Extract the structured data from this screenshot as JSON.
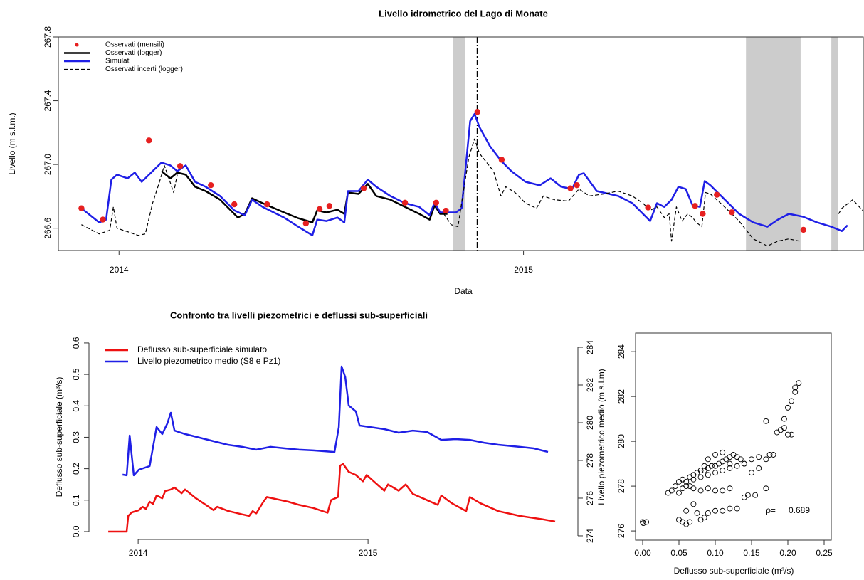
{
  "chart_data": [
    {
      "type": "line",
      "title": "Livello idrometrico del Lago di Monate",
      "xlabel": "Data",
      "ylabel": "Livello (m s.l.m.)",
      "xlim": [
        2013.85,
        2015.84
      ],
      "xticks": [
        2014,
        2015
      ],
      "ylim": [
        266.46,
        267.8
      ],
      "yticks": [
        266.6,
        {
          "value": 267,
          "label": "267.0"
        },
        267.4,
        267.8
      ],
      "legend": "topleft",
      "shaded": [
        [
          2014.826,
          2014.856
        ],
        [
          2015.55,
          2015.685
        ],
        [
          2015.761,
          2015.777
        ]
      ],
      "shade_color": "#cccccc",
      "vline": 2014.886,
      "series": [
        {
          "name": "Osservati (mensili)",
          "color": "#e62020",
          "mode": "markers",
          "x": [
            2013.907,
            2013.96,
            2014.074,
            2014.151,
            2014.227,
            2014.285,
            2014.366,
            2014.462,
            2014.496,
            2014.52,
            2014.605,
            2014.707,
            2014.784,
            2014.808,
            2014.886,
            2014.946,
            2015.116,
            2015.132,
            2015.308,
            2015.424,
            2015.443,
            2015.478,
            2015.515,
            2015.692
          ],
          "values": [
            266.725,
            266.654,
            267.151,
            266.99,
            266.87,
            266.75,
            266.75,
            266.63,
            266.72,
            266.74,
            266.85,
            266.76,
            266.76,
            266.71,
            267.33,
            267.03,
            266.85,
            266.87,
            266.73,
            266.74,
            266.69,
            266.81,
            266.7,
            266.59
          ]
        },
        {
          "name": "Osservati (logger)",
          "color": "#000000",
          "mode": "line",
          "line_width": 2.5,
          "x": [
            2014.105,
            2014.127,
            2014.144,
            2014.165,
            2014.188,
            2014.214,
            2014.25,
            2014.294,
            2014.311,
            2014.329,
            2014.355,
            2014.408,
            2014.443,
            2014.478,
            2014.49,
            2014.513,
            2014.54,
            2014.557,
            2014.566,
            2014.592,
            2014.615,
            2014.636,
            2014.671,
            2014.707,
            2014.742,
            2014.768,
            2014.78,
            2014.794,
            2014.812
          ],
          "values": [
            266.958,
            266.913,
            266.949,
            266.936,
            266.86,
            266.833,
            266.779,
            266.667,
            266.69,
            266.788,
            266.757,
            266.699,
            266.663,
            266.636,
            266.712,
            266.699,
            266.716,
            266.69,
            266.824,
            266.815,
            266.878,
            266.802,
            266.779,
            266.734,
            266.69,
            266.654,
            266.743,
            266.69,
            266.69
          ]
        },
        {
          "name": "Simulati",
          "color": "#1f1fe6",
          "mode": "line",
          "line_width": 2.5,
          "x": [
            2013.907,
            2013.951,
            2013.968,
            2013.981,
            2013.995,
            2014.021,
            2014.039,
            2014.056,
            2014.083,
            2014.105,
            2014.127,
            2014.144,
            2014.165,
            2014.188,
            2014.214,
            2014.25,
            2014.285,
            2014.311,
            2014.329,
            2014.355,
            2014.408,
            2014.443,
            2014.478,
            2014.49,
            2014.513,
            2014.54,
            2014.557,
            2014.566,
            2014.592,
            2014.615,
            2014.636,
            2014.671,
            2014.707,
            2014.742,
            2014.768,
            2014.78,
            2014.794,
            2014.833,
            2014.847,
            2014.856,
            2014.868,
            2014.879,
            2014.891,
            2014.917,
            2014.944,
            2014.97,
            2015.005,
            2015.04,
            2015.067,
            2015.093,
            2015.12,
            2015.137,
            2015.149,
            2015.181,
            2015.234,
            2015.269,
            2015.313,
            2015.33,
            2015.348,
            2015.366,
            2015.383,
            2015.401,
            2015.418,
            2015.436,
            2015.448,
            2015.462,
            2015.48,
            2015.533,
            2015.568,
            2015.603,
            2015.629,
            2015.656,
            2015.691,
            2015.726,
            2015.761,
            2015.787,
            2015.801
          ],
          "values": [
            266.725,
            266.636,
            266.654,
            266.905,
            266.936,
            266.913,
            266.949,
            266.891,
            266.958,
            267.012,
            266.994,
            266.958,
            266.994,
            266.891,
            266.86,
            266.802,
            266.712,
            266.681,
            266.779,
            266.734,
            266.667,
            266.609,
            266.555,
            266.654,
            266.645,
            266.667,
            266.636,
            266.833,
            266.833,
            266.905,
            266.86,
            266.802,
            266.757,
            266.734,
            266.681,
            266.761,
            266.699,
            266.699,
            266.725,
            266.958,
            267.272,
            267.317,
            267.236,
            267.115,
            267.025,
            266.958,
            266.891,
            266.869,
            266.913,
            266.86,
            266.846,
            266.936,
            266.945,
            266.833,
            266.802,
            266.757,
            266.645,
            266.757,
            266.734,
            266.779,
            266.86,
            266.846,
            266.743,
            266.734,
            266.896,
            266.869,
            266.824,
            266.69,
            266.636,
            266.609,
            266.654,
            266.69,
            266.672,
            266.636,
            266.609,
            266.582,
            266.618
          ]
        },
        {
          "name": "Osservati incerti (logger)",
          "color": "#000000",
          "mode": "dashed",
          "line_width": 1.2,
          "x": [
            2013.907,
            2013.951,
            2013.977,
            2013.986,
            2013.995,
            2014.021,
            2014.047,
            2014.065,
            2014.083,
            2014.1,
            2014.112,
            2014.123,
            2014.135,
            2014.144,
            null,
            2014.803,
            2014.821,
            2014.838,
            2014.851,
            2014.865,
            2014.879,
            2014.891,
            2014.909,
            2014.926,
            2014.944,
            2014.956,
            2014.979,
            2015.005,
            2015.032,
            2015.049,
            2015.076,
            2015.111,
            2015.137,
            2015.163,
            2015.199,
            2015.234,
            2015.269,
            2015.295,
            2015.313,
            2015.33,
            2015.348,
            2015.36,
            2015.366,
            2015.378,
            2015.392,
            2015.406,
            2015.418,
            2015.427,
            2015.441,
            2015.45,
            2015.462,
            2015.497,
            2015.533,
            2015.568,
            2015.603,
            2015.629,
            2015.656,
            2015.682,
            null,
            2015.779,
            2015.787,
            2015.814,
            2015.838
          ],
          "values": [
            266.622,
            266.564,
            266.587,
            266.734,
            266.6,
            266.578,
            266.555,
            266.564,
            266.757,
            266.891,
            266.994,
            266.913,
            266.824,
            266.936,
            null,
            266.69,
            266.622,
            266.609,
            266.824,
            267.048,
            267.16,
            267.07,
            267.012,
            266.958,
            266.802,
            266.86,
            266.824,
            266.757,
            266.725,
            266.802,
            266.779,
            266.77,
            266.846,
            266.802,
            266.815,
            266.833,
            266.802,
            266.757,
            266.712,
            266.734,
            266.667,
            266.69,
            266.519,
            266.734,
            266.645,
            266.69,
            266.667,
            266.636,
            266.609,
            266.824,
            266.815,
            266.734,
            266.645,
            266.533,
            266.488,
            266.519,
            266.533,
            266.519,
            null,
            266.69,
            266.725,
            266.779,
            266.712
          ]
        }
      ]
    },
    {
      "type": "line",
      "title": "Confronto tra livelli piezometrici e deflussi sub-superficiali",
      "ylabel": "Deflusso sub-superficiale (m³/s)",
      "y2label": "Livello piezometrico medio (m s.l.m)",
      "xlim": [
        2013.786,
        2015.913
      ],
      "xticks": [
        2014,
        2015
      ],
      "ylim": [
        -0.025,
        0.627
      ],
      "yticks": [
        {
          "value": 0,
          "label": "0.0"
        },
        0.1,
        0.2,
        0.3,
        0.4,
        0.5,
        0.6
      ],
      "y2lim": [
        273.81,
        284.68
      ],
      "y2ticks": [
        274,
        276,
        278,
        280,
        282,
        284
      ],
      "legend": "topleft",
      "series": [
        {
          "name": "Deflusso sub-superficiale simulato",
          "color": "#ee1111",
          "mode": "line",
          "line_width": 2.5,
          "x": [
            2013.87,
            2013.95,
            2013.957,
            2013.972,
            2014.003,
            2014.019,
            2014.034,
            2014.05,
            2014.065,
            2014.08,
            2014.105,
            2014.118,
            2014.142,
            2014.158,
            2014.189,
            2014.204,
            2014.251,
            2014.297,
            2014.328,
            2014.344,
            2014.39,
            2014.452,
            2014.483,
            2014.498,
            2014.514,
            2014.545,
            2014.56,
            2014.591,
            2014.622,
            2014.653,
            2014.7,
            2014.762,
            2014.824,
            2014.839,
            2014.87,
            2014.879,
            2014.892,
            2014.916,
            2014.947,
            2014.978,
            2014.994,
            2015.04,
            2015.071,
            2015.087,
            2015.133,
            2015.164,
            2015.195,
            2015.257,
            2015.303,
            2015.319,
            2015.365,
            2015.427,
            2015.443,
            2015.489,
            2015.567,
            2015.659,
            2015.752,
            2015.814
          ],
          "values": [
            0,
            0,
            0.05,
            0.061,
            0.068,
            0.079,
            0.072,
            0.095,
            0.088,
            0.115,
            0.106,
            0.129,
            0.134,
            0.14,
            0.122,
            0.134,
            0.106,
            0.084,
            0.068,
            0.079,
            0.066,
            0.055,
            0.05,
            0.065,
            0.058,
            0.095,
            0.11,
            0.105,
            0.1,
            0.095,
            0.085,
            0.075,
            0.06,
            0.1,
            0.11,
            0.21,
            0.215,
            0.19,
            0.18,
            0.16,
            0.18,
            0.15,
            0.13,
            0.15,
            0.13,
            0.15,
            0.12,
            0.1,
            0.085,
            0.115,
            0.09,
            0.065,
            0.11,
            0.09,
            0.065,
            0.05,
            0.04,
            0.032
          ]
        },
        {
          "name": "Livello piezometrico medio (S8 e Pz1)",
          "color": "#1f1fe6",
          "mode": "line",
          "line_width": 2.5,
          "axis": "y2",
          "x": [
            2013.932,
            2013.95,
            2013.963,
            2013.972,
            2013.981,
            2014.003,
            2014.05,
            2014.08,
            2014.105,
            2014.127,
            2014.142,
            2014.158,
            2014.204,
            2014.266,
            2014.328,
            2014.39,
            2014.452,
            2014.514,
            2014.576,
            2014.638,
            2014.7,
            2014.762,
            2014.854,
            2014.873,
            2014.885,
            2014.901,
            2014.916,
            2014.947,
            2014.963,
            2015.009,
            2015.071,
            2015.133,
            2015.195,
            2015.257,
            2015.319,
            2015.381,
            2015.443,
            2015.505,
            2015.567,
            2015.659,
            2015.721,
            2015.783
          ],
          "values": [
            277.25,
            277.21,
            279.32,
            278.26,
            277.21,
            277.51,
            277.7,
            279.77,
            279.4,
            279.96,
            280.53,
            279.58,
            279.4,
            279.21,
            279.02,
            278.83,
            278.72,
            278.57,
            278.72,
            278.64,
            278.57,
            278.53,
            278.45,
            279.77,
            282.98,
            282.42,
            280.91,
            280.6,
            279.85,
            279.77,
            279.66,
            279.47,
            279.58,
            279.51,
            279.09,
            279.13,
            279.09,
            278.94,
            278.83,
            278.72,
            278.64,
            278.45
          ]
        }
      ]
    },
    {
      "type": "scatter",
      "xlabel": "Deflusso sub-superficiale (m³/s)",
      "xlim": [
        -0.0098,
        0.2598
      ],
      "xticks": [
        {
          "value": 0,
          "label": "0.00"
        },
        0.05,
        {
          "value": 0.1,
          "label": "0.10"
        },
        0.15,
        {
          "value": 0.2,
          "label": "0.20"
        },
        0.25
      ],
      "ylim": [
        275.59,
        284.83
      ],
      "yticks": [
        276,
        278,
        280,
        282,
        284
      ],
      "annotations": [
        "ρ=",
        "0.689"
      ],
      "color": "#000000",
      "x": [
        0,
        0.001,
        0.005,
        0.035,
        0.04,
        0.045,
        0.05,
        0.055,
        0.06,
        0.065,
        0.07,
        0.075,
        0.08,
        0.085,
        0.09,
        0.095,
        0.1,
        0.105,
        0.11,
        0.115,
        0.12,
        0.125,
        0.13,
        0.135,
        0.14,
        0.15,
        0.16,
        0.17,
        0.175,
        0.18,
        0.185,
        0.19,
        0.195,
        0.2,
        0.205,
        0.195,
        0.2,
        0.205,
        0.21,
        0.215,
        0.21,
        0.17,
        0.17,
        0.155,
        0.14,
        0.13,
        0.12,
        0.11,
        0.1,
        0.09,
        0.085,
        0.08,
        0.075,
        0.065,
        0.06,
        0.055,
        0.05,
        0.06,
        0.07,
        0.08,
        0.09,
        0.1,
        0.11,
        0.12,
        0.05,
        0.055,
        0.065,
        0.07,
        0.08,
        0.09,
        0.1,
        0.11,
        0.12,
        0.13,
        0.14,
        0.15,
        0.145,
        0.16,
        0.06,
        0.07,
        0.1,
        0.11,
        0.12,
        0.09,
        0.085
      ],
      "values": [
        276.4,
        276.35,
        276.4,
        277.7,
        277.8,
        278.0,
        278.2,
        278.3,
        278.2,
        278.4,
        278.5,
        278.6,
        278.7,
        278.7,
        278.8,
        278.9,
        278.9,
        279.0,
        279.1,
        279.2,
        279.3,
        279.4,
        279.3,
        279.2,
        279.0,
        279.2,
        279.3,
        279.2,
        279.4,
        279.4,
        280.4,
        280.5,
        280.6,
        280.3,
        280.3,
        281.0,
        281.5,
        281.8,
        282.2,
        282.6,
        282.4,
        280.9,
        277.9,
        277.6,
        277.5,
        277.0,
        277.0,
        276.9,
        276.9,
        276.8,
        276.6,
        276.5,
        276.8,
        276.4,
        276.3,
        276.4,
        276.5,
        278.0,
        277.9,
        277.8,
        277.9,
        277.8,
        277.8,
        277.9,
        277.7,
        277.9,
        278.0,
        278.3,
        278.4,
        278.5,
        278.6,
        278.7,
        278.8,
        278.9,
        279.0,
        278.6,
        277.6,
        278.8,
        276.9,
        277.2,
        279.4,
        279.5,
        279.0,
        279.2,
        278.9
      ]
    }
  ]
}
